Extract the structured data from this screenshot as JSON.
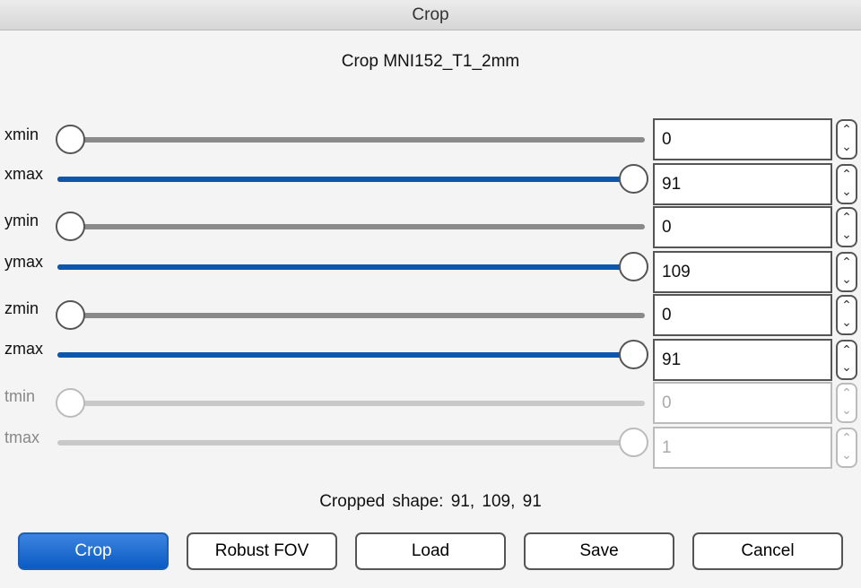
{
  "window": {
    "title": "Crop"
  },
  "heading": "Crop MNI152_T1_2mm",
  "colors": {
    "accent": "#0b57ae",
    "track": "#8a8a8a"
  },
  "sliders": [
    {
      "label": "xmin",
      "value": "0",
      "fraction": 0,
      "kind": "min",
      "enabled": true
    },
    {
      "label": "xmax",
      "value": "91",
      "fraction": 1,
      "kind": "max",
      "enabled": true
    },
    {
      "label": "ymin",
      "value": "0",
      "fraction": 0,
      "kind": "min",
      "enabled": true
    },
    {
      "label": "ymax",
      "value": "109",
      "fraction": 1,
      "kind": "max",
      "enabled": true
    },
    {
      "label": "zmin",
      "value": "0",
      "fraction": 0,
      "kind": "min",
      "enabled": true
    },
    {
      "label": "zmax",
      "value": "91",
      "fraction": 1,
      "kind": "max",
      "enabled": true
    },
    {
      "label": "tmin",
      "value": "0",
      "fraction": 0,
      "kind": "min",
      "enabled": false
    },
    {
      "label": "tmax",
      "value": "1",
      "fraction": 1,
      "kind": "max",
      "enabled": false
    }
  ],
  "spinner": {
    "up": "⌃",
    "down": "⌄"
  },
  "cropped_shape": "Cropped shape:  91, 109,  91",
  "buttons": {
    "crop": "Crop",
    "robust_fov": "Robust FOV",
    "load": "Load",
    "save": "Save",
    "cancel": "Cancel"
  }
}
